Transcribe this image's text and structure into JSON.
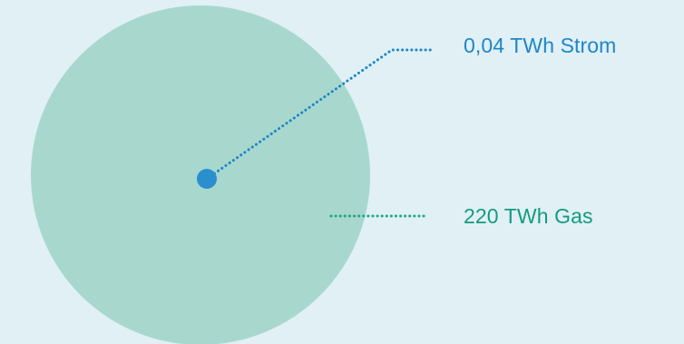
{
  "chart_data": {
    "type": "proportional-area",
    "items": [
      {
        "value": 220,
        "unit": "TWh",
        "carrier": "Gas",
        "label": "220 TWh Gas",
        "color": "#a8d8cd",
        "line_color": "#1fa68a",
        "text_color": "#159a80"
      },
      {
        "value": 0.04,
        "unit": "TWh",
        "carrier": "Strom",
        "label": "0,04 TWh Strom",
        "color": "#2b8fce",
        "line_color": "#1e86c8",
        "text_color": "#1e86c8"
      }
    ]
  },
  "colors": {
    "background": "#e0f0f5"
  }
}
